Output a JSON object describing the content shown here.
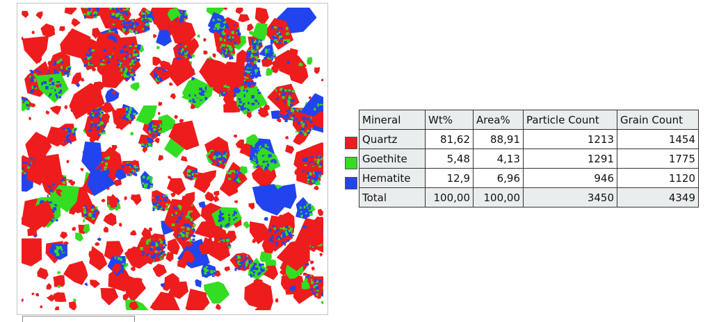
{
  "table": {
    "headers": [
      "Mineral",
      "Wt%",
      "Area%",
      "Particle Count",
      "Grain Count"
    ],
    "rows": [
      {
        "mineral": "Quartz",
        "color": "#ee1c1c",
        "wt": "81,62",
        "area": "88,91",
        "particles": "1213",
        "grains": "1454"
      },
      {
        "mineral": "Goethite",
        "color": "#33dd22",
        "wt": "5,48",
        "area": "4,13",
        "particles": "1291",
        "grains": "1775"
      },
      {
        "mineral": "Hematite",
        "color": "#2244ee",
        "wt": "12,9",
        "area": "6,96",
        "particles": "946",
        "grains": "1120"
      }
    ],
    "total": {
      "label": "Total",
      "wt": "100,00",
      "area": "100,00",
      "particles": "3450",
      "grains": "4349"
    }
  }
}
